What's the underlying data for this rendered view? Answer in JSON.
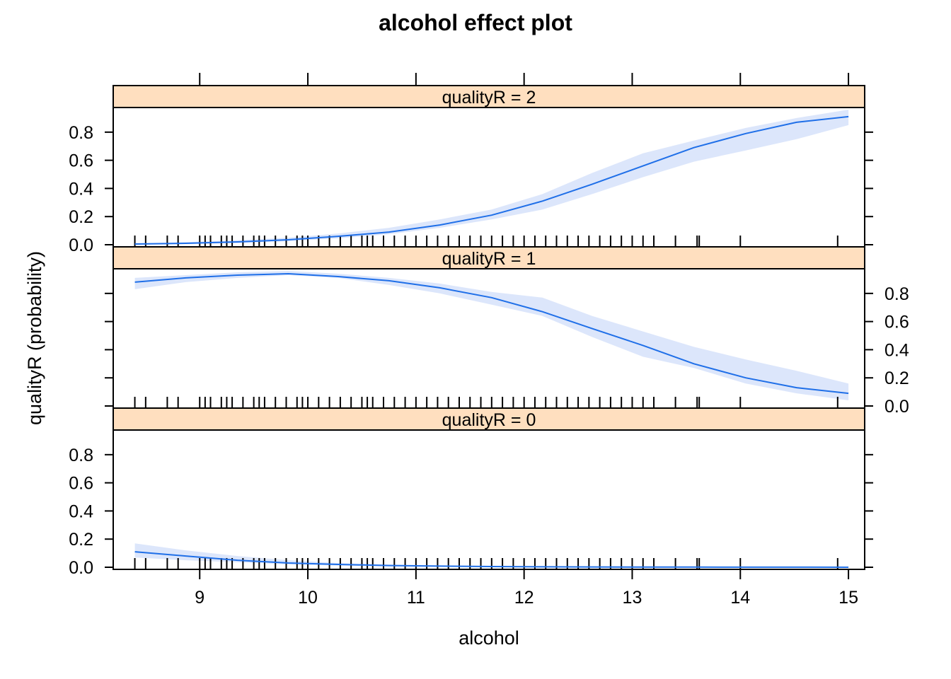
{
  "chart_data": {
    "type": "line",
    "title": "alcohol effect plot",
    "xlabel": "alcohol",
    "ylabel": "qualityR (probability)",
    "xlim": [
      8.2,
      15.15
    ],
    "ylim": [
      0,
      1
    ],
    "x_ticks": [
      9,
      10,
      11,
      12,
      13,
      14,
      15
    ],
    "y_ticks": [
      0.0,
      0.2,
      0.4,
      0.6,
      0.8
    ],
    "colors": {
      "line": "#1f6fe8",
      "band": "#dce6fb",
      "strip": "#ffdfbf",
      "frame": "#000000"
    },
    "x": [
      8.4,
      8.87,
      9.35,
      9.82,
      10.28,
      10.75,
      11.22,
      11.7,
      12.17,
      12.63,
      13.1,
      13.57,
      14.05,
      14.52,
      15.0
    ],
    "panels": [
      {
        "strip": "qualityR = 2",
        "values": [
          0.005,
          0.01,
          0.02,
          0.035,
          0.06,
          0.09,
          0.14,
          0.21,
          0.31,
          0.43,
          0.56,
          0.69,
          0.79,
          0.87,
          0.91
        ],
        "lower": [
          0.002,
          0.005,
          0.012,
          0.025,
          0.045,
          0.075,
          0.12,
          0.18,
          0.25,
          0.36,
          0.48,
          0.59,
          0.67,
          0.75,
          0.85
        ],
        "upper": [
          0.01,
          0.018,
          0.032,
          0.05,
          0.08,
          0.12,
          0.18,
          0.25,
          0.36,
          0.51,
          0.65,
          0.74,
          0.83,
          0.9,
          0.96
        ],
        "y_axis_side": "left"
      },
      {
        "strip": "qualityR = 1",
        "values": [
          0.88,
          0.91,
          0.93,
          0.94,
          0.92,
          0.89,
          0.84,
          0.77,
          0.67,
          0.55,
          0.43,
          0.3,
          0.2,
          0.13,
          0.09
        ],
        "lower": [
          0.83,
          0.88,
          0.91,
          0.93,
          0.91,
          0.86,
          0.8,
          0.72,
          0.64,
          0.49,
          0.35,
          0.27,
          0.16,
          0.09,
          0.04
        ],
        "upper": [
          0.91,
          0.93,
          0.95,
          0.96,
          0.94,
          0.91,
          0.87,
          0.81,
          0.77,
          0.64,
          0.53,
          0.42,
          0.33,
          0.25,
          0.16
        ],
        "y_axis_side": "right"
      },
      {
        "strip": "qualityR = 0",
        "values": [
          0.11,
          0.08,
          0.05,
          0.03,
          0.02,
          0.012,
          0.008,
          0.005,
          0.003,
          0.002,
          0.001,
          0.001,
          0.0005,
          0.0003,
          0.0002
        ],
        "lower": [
          0.07,
          0.05,
          0.035,
          0.02,
          0.012,
          0.008,
          0.005,
          0.003,
          0.002,
          0.001,
          0.0005,
          0.0003,
          0.0002,
          0.0001,
          0.0001
        ],
        "upper": [
          0.17,
          0.12,
          0.08,
          0.05,
          0.03,
          0.02,
          0.013,
          0.008,
          0.005,
          0.004,
          0.003,
          0.002,
          0.001,
          0.001,
          0.001
        ],
        "y_axis_side": "left"
      }
    ],
    "rug": [
      8.4,
      8.5,
      8.7,
      8.8,
      9.0,
      9.05,
      9.1,
      9.2,
      9.25,
      9.3,
      9.4,
      9.5,
      9.55,
      9.6,
      9.7,
      9.8,
      9.9,
      9.95,
      10.0,
      10.1,
      10.2,
      10.3,
      10.4,
      10.5,
      10.55,
      10.6,
      10.7,
      10.8,
      10.9,
      11.0,
      11.1,
      11.2,
      11.3,
      11.4,
      11.5,
      11.6,
      11.7,
      11.8,
      11.9,
      12.0,
      12.1,
      12.2,
      12.3,
      12.4,
      12.5,
      12.6,
      12.7,
      12.8,
      12.9,
      13.0,
      13.1,
      13.2,
      13.4,
      13.6,
      13.62,
      14.0,
      14.9
    ]
  }
}
